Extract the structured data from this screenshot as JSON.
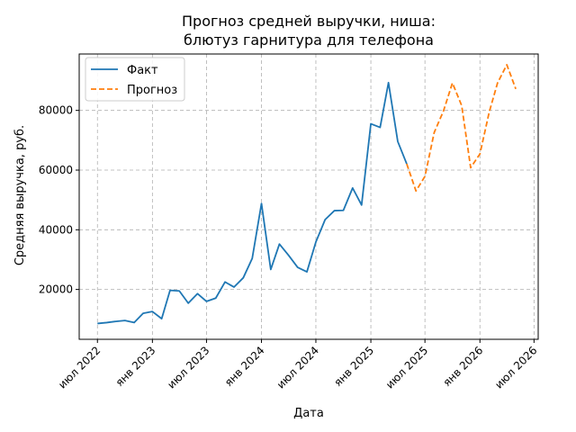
{
  "chart_data": {
    "type": "line",
    "title_lines": [
      "Прогноз средней выручки, ниша:",
      "блютуз гарнитура для телефона"
    ],
    "xlabel": "Дата",
    "ylabel": "Средняя выручка, руб.",
    "xlim": [
      "2022-05-01",
      "2026-07-15"
    ],
    "ylim": [
      3300,
      98900
    ],
    "grid": true,
    "legend_position": "top-left",
    "x_ticks": [
      {
        "date": "2022-07-01",
        "label": "июл 2022"
      },
      {
        "date": "2023-01-01",
        "label": "янв 2023"
      },
      {
        "date": "2023-07-01",
        "label": "июл 2023"
      },
      {
        "date": "2024-01-01",
        "label": "янв 2024"
      },
      {
        "date": "2024-07-01",
        "label": "июл 2024"
      },
      {
        "date": "2025-01-01",
        "label": "янв 2025"
      },
      {
        "date": "2025-07-01",
        "label": "июл 2025"
      },
      {
        "date": "2026-01-01",
        "label": "янв 2026"
      },
      {
        "date": "2026-07-01",
        "label": "июл 2026"
      }
    ],
    "y_ticks": [
      {
        "value": 20000,
        "label": "20000"
      },
      {
        "value": 40000,
        "label": "40000"
      },
      {
        "value": 60000,
        "label": "60000"
      },
      {
        "value": 80000,
        "label": "80000"
      }
    ],
    "series": [
      {
        "name": "Факт",
        "color": "#1f77b4",
        "dash": "solid",
        "points": [
          {
            "x": "2022-07-01",
            "y": 8600
          },
          {
            "x": "2022-08-01",
            "y": 8900
          },
          {
            "x": "2022-09-01",
            "y": 9300
          },
          {
            "x": "2022-10-01",
            "y": 9600
          },
          {
            "x": "2022-11-01",
            "y": 8900
          },
          {
            "x": "2022-12-01",
            "y": 12000
          },
          {
            "x": "2023-01-01",
            "y": 12600
          },
          {
            "x": "2023-02-01",
            "y": 10200
          },
          {
            "x": "2023-03-01",
            "y": 19700
          },
          {
            "x": "2023-04-01",
            "y": 19500
          },
          {
            "x": "2023-05-01",
            "y": 15400
          },
          {
            "x": "2023-06-01",
            "y": 18600
          },
          {
            "x": "2023-07-01",
            "y": 16000
          },
          {
            "x": "2023-08-01",
            "y": 17100
          },
          {
            "x": "2023-09-01",
            "y": 22500
          },
          {
            "x": "2023-10-01",
            "y": 20800
          },
          {
            "x": "2023-11-01",
            "y": 23900
          },
          {
            "x": "2023-12-01",
            "y": 30400
          },
          {
            "x": "2024-01-01",
            "y": 48800
          },
          {
            "x": "2024-02-01",
            "y": 26700
          },
          {
            "x": "2024-03-01",
            "y": 35200
          },
          {
            "x": "2024-04-01",
            "y": 31400
          },
          {
            "x": "2024-05-01",
            "y": 27400
          },
          {
            "x": "2024-06-01",
            "y": 25900
          },
          {
            "x": "2024-07-01",
            "y": 35900
          },
          {
            "x": "2024-08-01",
            "y": 43400
          },
          {
            "x": "2024-09-01",
            "y": 46400
          },
          {
            "x": "2024-10-01",
            "y": 46500
          },
          {
            "x": "2024-11-01",
            "y": 54000
          },
          {
            "x": "2024-12-01",
            "y": 48300
          },
          {
            "x": "2025-01-01",
            "y": 75500
          },
          {
            "x": "2025-02-01",
            "y": 74300
          },
          {
            "x": "2025-03-01",
            "y": 89300
          },
          {
            "x": "2025-04-01",
            "y": 69600
          },
          {
            "x": "2025-05-01",
            "y": 62100
          }
        ]
      },
      {
        "name": "Прогноз",
        "color": "#ff7f0e",
        "dash": "dashed",
        "points": [
          {
            "x": "2025-05-01",
            "y": 62100
          },
          {
            "x": "2025-06-01",
            "y": 53000
          },
          {
            "x": "2025-07-01",
            "y": 57900
          },
          {
            "x": "2025-08-01",
            "y": 72600
          },
          {
            "x": "2025-09-01",
            "y": 79800
          },
          {
            "x": "2025-10-01",
            "y": 89200
          },
          {
            "x": "2025-11-01",
            "y": 81600
          },
          {
            "x": "2025-12-01",
            "y": 60800
          },
          {
            "x": "2026-01-01",
            "y": 65400
          },
          {
            "x": "2026-02-01",
            "y": 79400
          },
          {
            "x": "2026-03-01",
            "y": 89200
          },
          {
            "x": "2026-04-01",
            "y": 95300
          },
          {
            "x": "2026-05-01",
            "y": 87200
          }
        ]
      }
    ]
  }
}
